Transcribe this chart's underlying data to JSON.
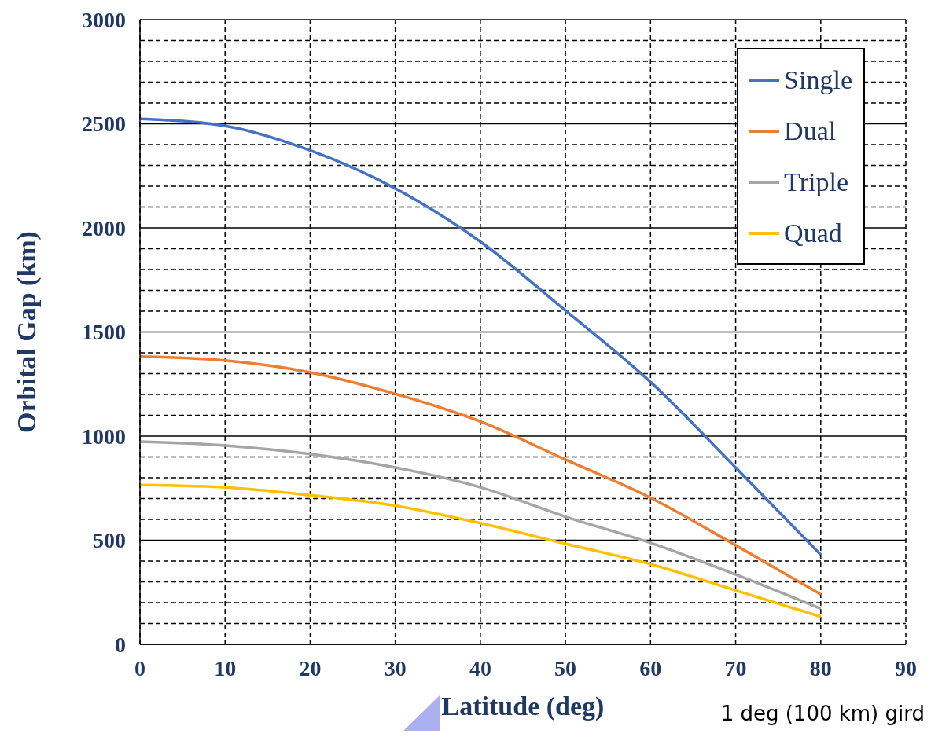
{
  "chart_data": {
    "type": "line",
    "xlabel": "Latitude (deg)",
    "ylabel": "Orbital Gap (km)",
    "x": [
      0,
      10,
      20,
      30,
      40,
      50,
      60,
      70,
      80
    ],
    "series": [
      {
        "name": "Single",
        "color": "#4472c4",
        "values": [
          2524,
          2490,
          2372,
          2189,
          1934,
          1603,
          1260,
          849,
          430
        ]
      },
      {
        "name": "Dual",
        "color": "#ed7d31",
        "values": [
          1382,
          1363,
          1306,
          1203,
          1070,
          887,
          704,
          476,
          240
        ]
      },
      {
        "name": "Triple",
        "color": "#a5a5a5",
        "values": [
          974,
          955,
          914,
          849,
          754,
          613,
          487,
          335,
          171
        ]
      },
      {
        "name": "Quad",
        "color": "#ffc000",
        "values": [
          765,
          754,
          716,
          666,
          582,
          483,
          385,
          259,
          133
        ]
      }
    ],
    "xlim": [
      0,
      90
    ],
    "xticks": [
      0,
      10,
      20,
      30,
      40,
      50,
      60,
      70,
      80,
      90
    ],
    "ylim": [
      0,
      3000
    ],
    "yticks": [
      0,
      {
        "value": 100,
        "label": null
      },
      {
        "value": 200,
        "label": null
      },
      {
        "value": 300,
        "label": null
      },
      {
        "value": 400,
        "label": null
      },
      500,
      {
        "value": 600,
        "label": null
      },
      {
        "value": 700,
        "label": null
      },
      {
        "value": 800,
        "label": null
      },
      {
        "value": 900,
        "label": null
      },
      1000,
      {
        "value": 1100,
        "label": null
      },
      {
        "value": 1200,
        "label": null
      },
      {
        "value": 1300,
        "label": null
      },
      {
        "value": 1400,
        "label": null
      },
      1500,
      {
        "value": 1600,
        "label": null
      },
      {
        "value": 1700,
        "label": null
      },
      {
        "value": 1800,
        "label": null
      },
      {
        "value": 1900,
        "label": null
      },
      2000,
      {
        "value": 2100,
        "label": null
      },
      {
        "value": 2200,
        "label": null
      },
      {
        "value": 2300,
        "label": null
      },
      {
        "value": 2400,
        "label": null
      },
      2500,
      {
        "value": 2600,
        "label": null
      },
      {
        "value": 2700,
        "label": null
      },
      {
        "value": 2800,
        "label": null
      },
      {
        "value": 2900,
        "label": null
      },
      3000
    ],
    "grid": true,
    "legend": "top right",
    "marker": "none",
    "line_style": "solid",
    "annotations": [
      "1 deg (100 km) gird"
    ]
  }
}
